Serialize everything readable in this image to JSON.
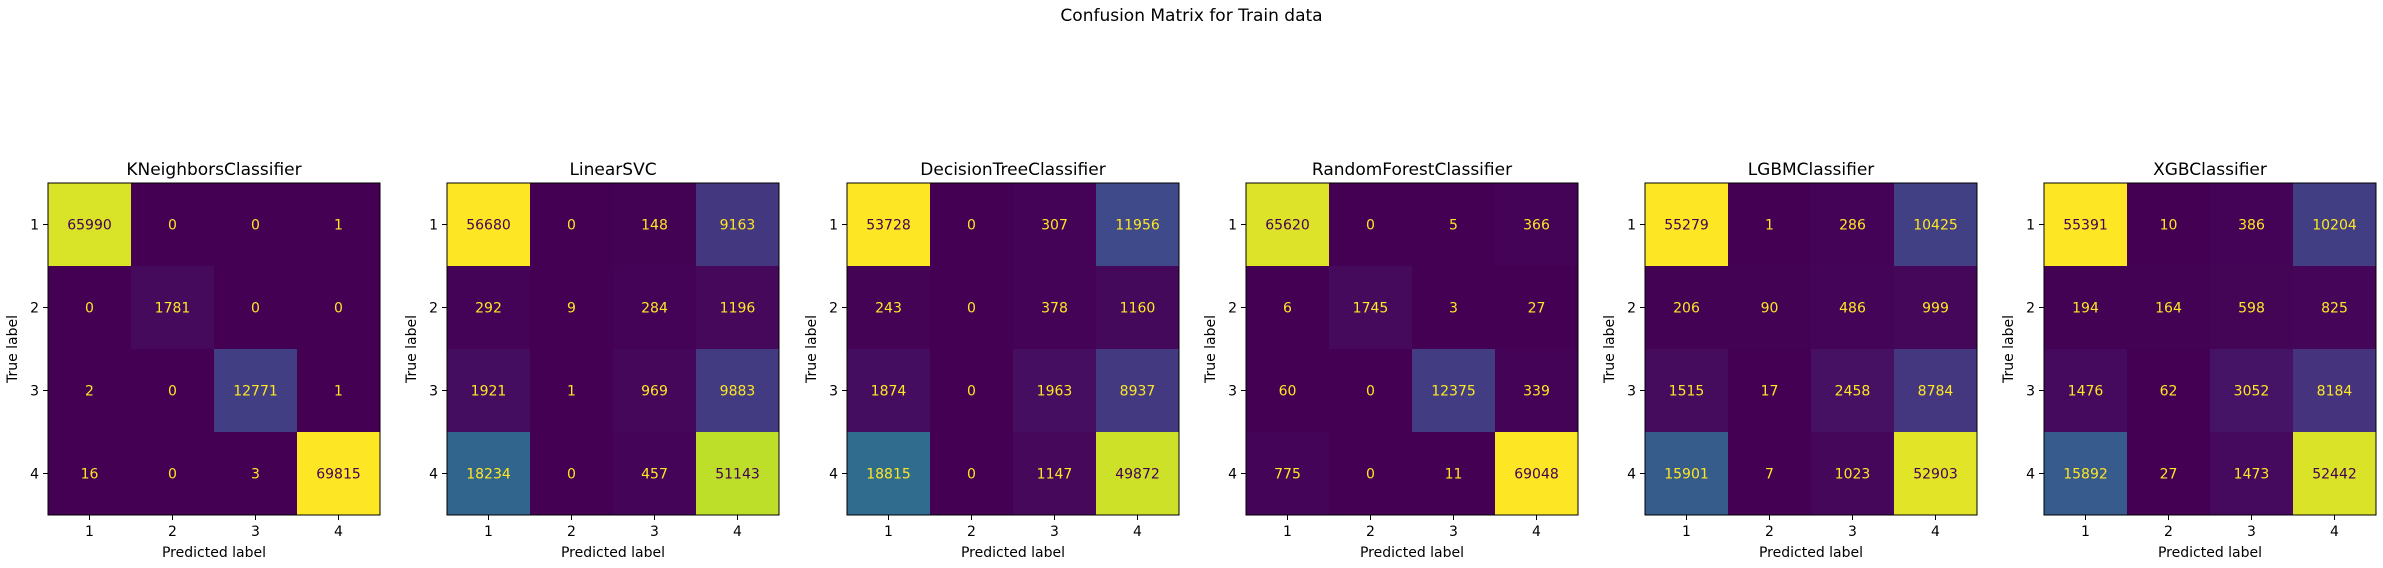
{
  "figure": {
    "title": "Confusion Matrix for Train data"
  },
  "colormap": {
    "name": "viridis",
    "stops": [
      "#440154",
      "#482878",
      "#3e4a89",
      "#31688e",
      "#26828e",
      "#1f9e89",
      "#35b779",
      "#6ece58",
      "#b5de2b",
      "#fde725"
    ],
    "text_light": "#fde725",
    "text_dark": "#440154"
  },
  "chart_data": [
    {
      "type": "heatmap",
      "title": "KNeighborsClassifier",
      "xlabel": "Predicted label",
      "ylabel": "True label",
      "x_categories": [
        "1",
        "2",
        "3",
        "4"
      ],
      "y_categories": [
        "1",
        "2",
        "3",
        "4"
      ],
      "values": [
        [
          65990,
          0,
          0,
          1
        ],
        [
          0,
          1781,
          0,
          0
        ],
        [
          2,
          0,
          12771,
          1
        ],
        [
          16,
          0,
          3,
          69815
        ]
      ]
    },
    {
      "type": "heatmap",
      "title": "LinearSVC",
      "xlabel": "Predicted label",
      "ylabel": "True label",
      "x_categories": [
        "1",
        "2",
        "3",
        "4"
      ],
      "y_categories": [
        "1",
        "2",
        "3",
        "4"
      ],
      "values": [
        [
          56680,
          0,
          148,
          9163
        ],
        [
          292,
          9,
          284,
          1196
        ],
        [
          1921,
          1,
          969,
          9883
        ],
        [
          18234,
          0,
          457,
          51143
        ]
      ]
    },
    {
      "type": "heatmap",
      "title": "DecisionTreeClassifier",
      "xlabel": "Predicted label",
      "ylabel": "True label",
      "x_categories": [
        "1",
        "2",
        "3",
        "4"
      ],
      "y_categories": [
        "1",
        "2",
        "3",
        "4"
      ],
      "values": [
        [
          53728,
          0,
          307,
          11956
        ],
        [
          243,
          0,
          378,
          1160
        ],
        [
          1874,
          0,
          1963,
          8937
        ],
        [
          18815,
          0,
          1147,
          49872
        ]
      ]
    },
    {
      "type": "heatmap",
      "title": "RandomForestClassifier",
      "xlabel": "Predicted label",
      "ylabel": "True label",
      "x_categories": [
        "1",
        "2",
        "3",
        "4"
      ],
      "y_categories": [
        "1",
        "2",
        "3",
        "4"
      ],
      "values": [
        [
          65620,
          0,
          5,
          366
        ],
        [
          6,
          1745,
          3,
          27
        ],
        [
          60,
          0,
          12375,
          339
        ],
        [
          775,
          0,
          11,
          69048
        ]
      ]
    },
    {
      "type": "heatmap",
      "title": "LGBMClassifier",
      "xlabel": "Predicted label",
      "ylabel": "True label",
      "x_categories": [
        "1",
        "2",
        "3",
        "4"
      ],
      "y_categories": [
        "1",
        "2",
        "3",
        "4"
      ],
      "values": [
        [
          55279,
          1,
          286,
          10425
        ],
        [
          206,
          90,
          486,
          999
        ],
        [
          1515,
          17,
          2458,
          8784
        ],
        [
          15901,
          7,
          1023,
          52903
        ]
      ]
    },
    {
      "type": "heatmap",
      "title": "XGBClassifier",
      "xlabel": "Predicted label",
      "ylabel": "True label",
      "x_categories": [
        "1",
        "2",
        "3",
        "4"
      ],
      "y_categories": [
        "1",
        "2",
        "3",
        "4"
      ],
      "values": [
        [
          55391,
          10,
          386,
          10204
        ],
        [
          194,
          164,
          598,
          825
        ],
        [
          1476,
          62,
          3052,
          8184
        ],
        [
          15892,
          27,
          1473,
          52442
        ]
      ]
    }
  ]
}
